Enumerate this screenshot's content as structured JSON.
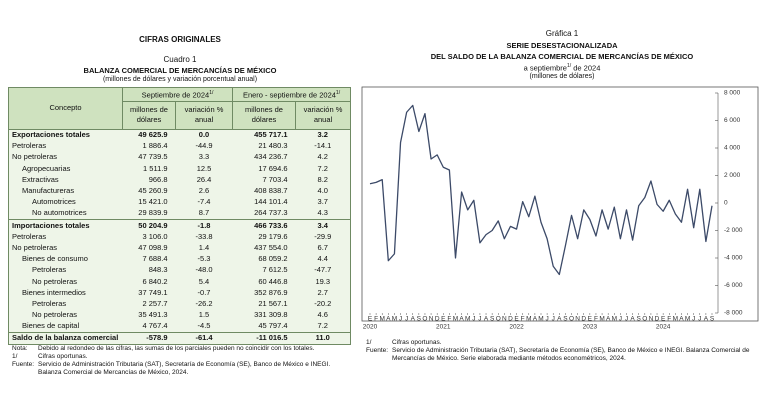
{
  "left": {
    "heading": "CIFRAS ORIGINALES",
    "table_number": "Cuadro 1",
    "table_title": "BALANZA COMERCIAL DE MERCANCÍAS DE MÉXICO",
    "table_subtitle": "(millones de dólares y variación porcentual anual)",
    "table": {
      "concept_header": "Concepto",
      "periods": [
        {
          "label": "Septiembre de 2024",
          "note": "1/"
        },
        {
          "label": "Enero - septiembre de 2024",
          "note": "1/"
        }
      ],
      "subheaders": [
        "millones de dólares",
        "variación % anual",
        "millones de dólares",
        "variación % anual"
      ],
      "rows": [
        [
          "Exportaciones totales",
          "49 625.9",
          "0.0",
          "455 717.1",
          "3.2"
        ],
        [
          "Petroleras",
          "1 886.4",
          "-44.9",
          "21 480.3",
          "-14.1"
        ],
        [
          "No petroleras",
          "47 739.5",
          "3.3",
          "434 236.7",
          "4.2"
        ],
        [
          "Agropecuarias",
          "1 511.9",
          "12.5",
          "17 694.6",
          "7.2"
        ],
        [
          "Extractivas",
          "966.8",
          "26.4",
          "7 703.4",
          "8.2"
        ],
        [
          "Manufactureras",
          "45 260.9",
          "2.6",
          "408 838.7",
          "4.0"
        ],
        [
          "Automotrices",
          "15 421.0",
          "-7.4",
          "144 101.4",
          "3.7"
        ],
        [
          "No automotrices",
          "29 839.9",
          "8.7",
          "264 737.3",
          "4.3"
        ],
        [
          "Importaciones totales",
          "50 204.9",
          "-1.8",
          "466 733.6",
          "3.4"
        ],
        [
          "Petroleras",
          "3 106.0",
          "-33.8",
          "29 179.6",
          "-29.9"
        ],
        [
          "No petroleras",
          "47 098.9",
          "1.4",
          "437 554.0",
          "6.7"
        ],
        [
          "Bienes de consumo",
          "7 688.4",
          "-5.3",
          "68 059.2",
          "4.4"
        ],
        [
          "Petroleras",
          "848.3",
          "-48.0",
          "7 612.5",
          "-47.7"
        ],
        [
          "No petroleras",
          "6 840.2",
          "5.4",
          "60 446.8",
          "19.3"
        ],
        [
          "Bienes intermedios",
          "37 749.1",
          "-0.7",
          "352 876.9",
          "2.7"
        ],
        [
          "Petroleras",
          "2 257.7",
          "-26.2",
          "21 567.1",
          "-20.2"
        ],
        [
          "No petroleras",
          "35 491.3",
          "1.5",
          "331 309.8",
          "4.6"
        ],
        [
          "Bienes de capital",
          "4 767.4",
          "-4.5",
          "45 797.4",
          "7.2"
        ],
        [
          "Saldo de la balanza comercial",
          "-578.9",
          "-61.4",
          "-11 016.5",
          "11.0"
        ]
      ]
    },
    "notes": [
      {
        "label": "Nota:",
        "text": "Debido al redondeo de las cifras, las sumas de los parciales pueden no coincidir con los totales."
      },
      {
        "label": "1/",
        "text": "Cifras oportunas."
      },
      {
        "label": "Fuente:",
        "text": "Servicio de Administración Tributaria (SAT), Secretaría de Economía (SE), Banco de México e INEGI. Balanza Comercial de Mercancías de México, 2024."
      }
    ]
  },
  "chart_data": {
    "type": "line",
    "title": "Gráfica 1",
    "subtitle": [
      "SERIE DESESTACIONALIZADA",
      "DEL SALDO DE LA BALANZA COMERCIAL DE MERCANCÍAS DE MÉXICO"
    ],
    "period": {
      "before": "a septiembre",
      "note": "1/",
      "after": "de 2024"
    },
    "unit": "(millones de dólares)",
    "categories": [
      "E",
      "F",
      "M",
      "A",
      "M",
      "J",
      "J",
      "A",
      "S",
      "O",
      "N",
      "D",
      "E",
      "F",
      "M",
      "A",
      "M",
      "J",
      "J",
      "A",
      "S",
      "O",
      "N",
      "D",
      "E",
      "F",
      "M",
      "A",
      "M",
      "J",
      "J",
      "A",
      "S",
      "O",
      "N",
      "D",
      "E",
      "F",
      "M",
      "A",
      "M",
      "J",
      "J",
      "A",
      "S",
      "O",
      "N",
      "D",
      "E",
      "F",
      "M",
      "A",
      "M",
      "J",
      "J",
      "A",
      "S"
    ],
    "years": [
      "2020",
      "2021",
      "2022",
      "2023",
      "2024"
    ],
    "values": [
      1400,
      1500,
      1700,
      -4200,
      -3700,
      4400,
      6600,
      7100,
      5200,
      6500,
      3200,
      3500,
      2600,
      2400,
      -4000,
      800,
      -500,
      200,
      -2900,
      -2300,
      -2000,
      -1300,
      -2600,
      -1700,
      -1900,
      100,
      -1000,
      500,
      -1400,
      -2600,
      -4600,
      -5200,
      -3100,
      -900,
      -2600,
      -500,
      -1200,
      -2400,
      -500,
      -1900,
      -300,
      -2600,
      -500,
      -2700,
      -200,
      400,
      1600,
      -100,
      -600,
      200,
      -800,
      -1400,
      1000,
      -1800,
      1000,
      -2800,
      -200
    ],
    "color": "#3c4a68",
    "ylim": [
      -8000,
      8000
    ],
    "yticks": [
      {
        "value": 8000,
        "label": "8 000"
      },
      {
        "value": 6000,
        "label": "6 000"
      },
      {
        "value": 4000,
        "label": "4 000"
      },
      {
        "value": 2000,
        "label": "2 000"
      },
      0,
      {
        "value": -2000,
        "label": "-2 000"
      },
      {
        "value": -4000,
        "label": "-4 000"
      },
      {
        "value": -6000,
        "label": "-6 000"
      },
      {
        "value": -8000,
        "label": "-8 000"
      }
    ],
    "grid": false,
    "notes": [
      {
        "label": "1/",
        "text": "Cifras oportunas."
      },
      {
        "label": "Fuente:",
        "text": "Servicio de Administración Tributaria (SAT), Secretaría de Economía (SE), Banco de México e INEGI. Balanza Comercial de Mercancías de México. Serie elaborada mediante métodos econométricos, 2024."
      }
    ]
  }
}
